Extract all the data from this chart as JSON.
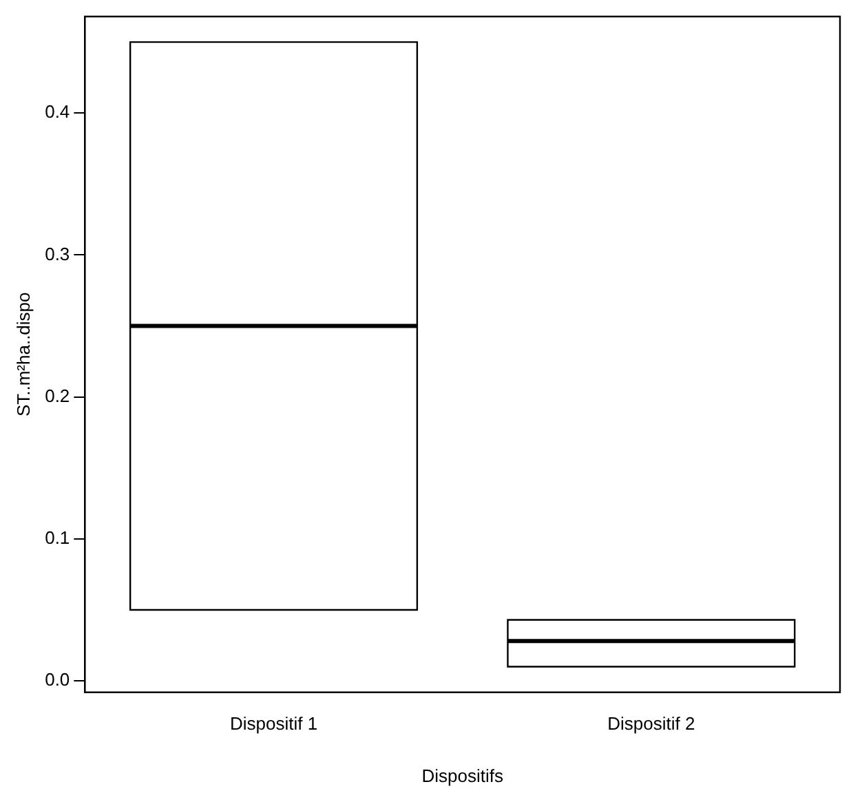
{
  "chart_data": {
    "type": "box",
    "xlabel": "Dispositifs",
    "ylabel": "ST..m²ha..dispo",
    "categories": [
      "Dispositif 1",
      "Dispositif 2"
    ],
    "boxes": [
      {
        "low": 0.05,
        "q1": 0.05,
        "median": 0.25,
        "q3": 0.45,
        "high": 0.45
      },
      {
        "low": 0.01,
        "q1": 0.01,
        "median": 0.028,
        "q3": 0.043,
        "high": 0.043
      }
    ],
    "ylim": [
      -0.008,
      0.468
    ],
    "yticks": [
      {
        "value": 0,
        "label": "0.0"
      },
      0.1,
      0.2,
      0.3,
      0.4
    ],
    "grid": false,
    "legend": false
  }
}
